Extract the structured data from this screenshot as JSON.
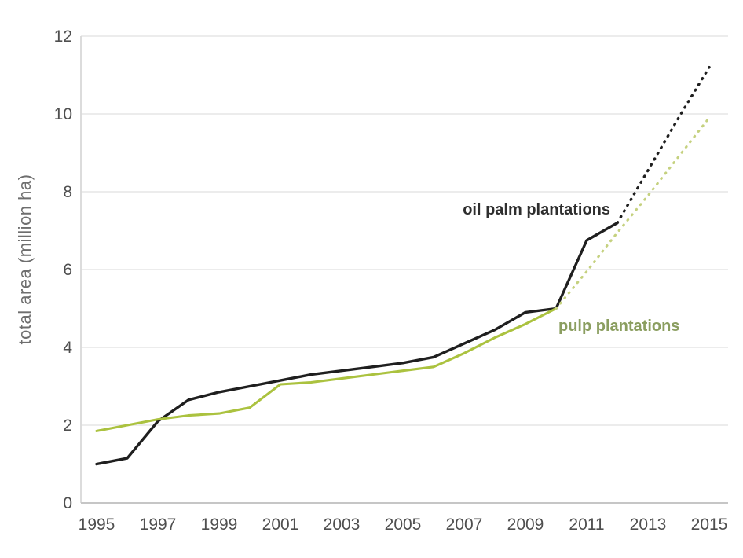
{
  "chart_data": {
    "type": "line",
    "title": "",
    "xlabel": "",
    "ylabel": "total area (million ha)",
    "xlim": [
      1995,
      2015
    ],
    "ylim": [
      0,
      12
    ],
    "x_ticks": [
      1995,
      1997,
      1999,
      2001,
      2003,
      2005,
      2007,
      2009,
      2011,
      2013,
      2015
    ],
    "y_ticks": [
      0,
      2,
      4,
      6,
      8,
      10,
      12
    ],
    "grid": "horizontal-only",
    "legend_position": "inline-labels",
    "series": [
      {
        "name": "oil palm plantations",
        "segment": "historical",
        "style": "solid",
        "color": "#1f1f1f",
        "width": 3.4,
        "x": [
          1995,
          1996,
          1997,
          1998,
          1999,
          2000,
          2001,
          2002,
          2003,
          2004,
          2005,
          2006,
          2007,
          2008,
          2009,
          2010,
          2011,
          2012
        ],
        "values": [
          1.0,
          1.15,
          2.1,
          2.65,
          2.85,
          3.0,
          3.15,
          3.3,
          3.4,
          3.5,
          3.6,
          3.75,
          4.1,
          4.45,
          4.9,
          5.0,
          6.75,
          7.2
        ]
      },
      {
        "name": "oil palm plantations",
        "segment": "projection",
        "style": "dotted",
        "color": "#1f1f1f",
        "width": 3.4,
        "x": [
          2012,
          2013,
          2014,
          2015
        ],
        "values": [
          7.2,
          8.55,
          9.9,
          11.2
        ]
      },
      {
        "name": "pulp plantations",
        "segment": "historical",
        "style": "solid",
        "color": "#abc23f",
        "width": 3.1,
        "x": [
          1995,
          1996,
          1997,
          1998,
          1999,
          2000,
          2001,
          2002,
          2003,
          2004,
          2005,
          2006,
          2007,
          2008,
          2009,
          2010
        ],
        "values": [
          1.85,
          2.0,
          2.15,
          2.25,
          2.3,
          2.45,
          3.05,
          3.1,
          3.2,
          3.3,
          3.4,
          3.5,
          3.85,
          4.25,
          4.6,
          5.0
        ]
      },
      {
        "name": "pulp plantations",
        "segment": "projection",
        "style": "dotted",
        "color": "#c5d17f",
        "width": 3.1,
        "x": [
          2010,
          2011,
          2012,
          2013,
          2014,
          2015
        ],
        "values": [
          5.0,
          5.95,
          6.95,
          7.9,
          8.9,
          9.9
        ]
      }
    ],
    "annotations": [
      {
        "text": "oil palm plantations",
        "color": "#2e2e2e"
      },
      {
        "text": "pulp plantations",
        "color": "#8b9e60"
      }
    ]
  },
  "labels": {
    "y_axis_title": "total area (million ha)",
    "oil_palm": "oil palm plantations",
    "pulp": "pulp plantations"
  },
  "colors": {
    "background": "#ffffff",
    "gridline": "#e6e6e6",
    "axis_left": "#d9d9d9",
    "axis_bottom": "#c6c6c6",
    "tick_text": "#4f4f4f",
    "y_title_text": "#6e6e6e",
    "oil_palm_line": "#1f1f1f",
    "pulp_line_solid": "#abc23f",
    "pulp_line_dotted": "#c5d17f",
    "oil_palm_label": "#2e2e2e",
    "pulp_label": "#8b9e60"
  }
}
